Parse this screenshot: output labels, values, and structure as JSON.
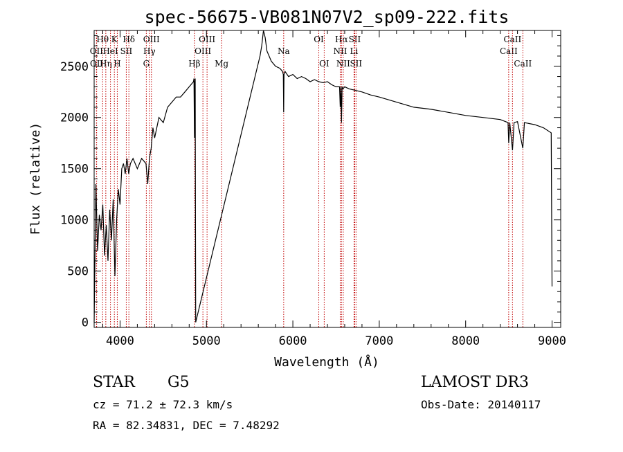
{
  "chart_data": {
    "type": "line",
    "title": "spec-56675-VB081N07V2_sp09-222.fits",
    "xlabel": "Wavelength (Å)",
    "ylabel": "Flux (relative)",
    "xlim": [
      3700,
      9100
    ],
    "ylim": [
      -50,
      2850
    ],
    "x_ticks": [
      4000,
      5000,
      6000,
      7000,
      8000,
      9000
    ],
    "y_ticks": [
      0,
      500,
      1000,
      1500,
      2000,
      2500
    ],
    "spectral_lines": [
      {
        "name": "Hθ",
        "wavelength": 3798,
        "row": 0
      },
      {
        "name": "OII",
        "wavelength": 3727,
        "row": 1
      },
      {
        "name": "OII",
        "wavelength": 3729,
        "row": 2
      },
      {
        "name": "Hη",
        "wavelength": 3835,
        "row": 2
      },
      {
        "name": "HeI",
        "wavelength": 3889,
        "row": 1
      },
      {
        "name": "K",
        "wavelength": 3934,
        "row": 0
      },
      {
        "name": "H",
        "wavelength": 3968,
        "row": 2
      },
      {
        "name": "SII",
        "wavelength": 4072,
        "row": 1
      },
      {
        "name": "Hδ",
        "wavelength": 4102,
        "row": 0
      },
      {
        "name": "G",
        "wavelength": 4304,
        "row": 2
      },
      {
        "name": "Hγ",
        "wavelength": 4340,
        "row": 1
      },
      {
        "name": "OIII",
        "wavelength": 4363,
        "row": 0
      },
      {
        "name": "Hβ",
        "wavelength": 4861,
        "row": 2
      },
      {
        "name": "OIII",
        "wavelength": 4959,
        "row": 1
      },
      {
        "name": "OIII",
        "wavelength": 5007,
        "row": 0
      },
      {
        "name": "Mg",
        "wavelength": 5175,
        "row": 2
      },
      {
        "name": "Na",
        "wavelength": 5894,
        "row": 1
      },
      {
        "name": "OI",
        "wavelength": 6300,
        "row": 0
      },
      {
        "name": "OI",
        "wavelength": 6363,
        "row": 2
      },
      {
        "name": "NII",
        "wavelength": 6548,
        "row": 1
      },
      {
        "name": "Hα",
        "wavelength": 6563,
        "row": 0
      },
      {
        "name": "NII",
        "wavelength": 6583,
        "row": 2
      },
      {
        "name": "SII",
        "wavelength": 6716,
        "row": 0
      },
      {
        "name": "Li",
        "wavelength": 6708,
        "row": 1
      },
      {
        "name": "SII",
        "wavelength": 6731,
        "row": 2
      },
      {
        "name": "CaII",
        "wavelength": 8498,
        "row": 1
      },
      {
        "name": "CaII",
        "wavelength": 8542,
        "row": 0
      },
      {
        "name": "CaII",
        "wavelength": 8662,
        "row": 2
      }
    ],
    "series": [
      {
        "name": "flux",
        "x": [
          3700,
          3720,
          3740,
          3760,
          3780,
          3800,
          3820,
          3840,
          3860,
          3880,
          3900,
          3920,
          3940,
          3960,
          3980,
          4000,
          4020,
          4040,
          4060,
          4080,
          4100,
          4120,
          4150,
          4200,
          4250,
          4300,
          4320,
          4340,
          4360,
          4380,
          4400,
          4450,
          4500,
          4550,
          4600,
          4650,
          4700,
          4750,
          4800,
          4850,
          4855,
          4861,
          4866,
          4870,
          4875,
          5620,
          5640,
          5660,
          5680,
          5700,
          5750,
          5800,
          5850,
          5880,
          5890,
          5894,
          5898,
          5910,
          5950,
          6000,
          6050,
          6100,
          6150,
          6200,
          6250,
          6300,
          6350,
          6400,
          6450,
          6500,
          6540,
          6548,
          6556,
          6563,
          6570,
          6580,
          6600,
          6650,
          6700,
          6800,
          6900,
          7000,
          7200,
          7400,
          7600,
          7800,
          8000,
          8200,
          8400,
          8490,
          8498,
          8510,
          8542,
          8560,
          8600,
          8662,
          8680,
          8800,
          8900,
          8990,
          9000
        ],
        "y": [
          0,
          1350,
          700,
          1050,
          900,
          1150,
          650,
          950,
          600,
          1100,
          800,
          1200,
          450,
          1000,
          1300,
          1150,
          1500,
          1550,
          1450,
          1600,
          1450,
          1550,
          1600,
          1500,
          1600,
          1550,
          1350,
          1600,
          1700,
          1900,
          1800,
          2000,
          1950,
          2100,
          2150,
          2200,
          2200,
          2250,
          2300,
          2350,
          2380,
          1800,
          2350,
          2380,
          0,
          2600,
          2700,
          2850,
          2780,
          2650,
          2550,
          2500,
          2480,
          2450,
          2420,
          2050,
          2420,
          2450,
          2400,
          2420,
          2380,
          2400,
          2380,
          2350,
          2370,
          2350,
          2340,
          2350,
          2320,
          2300,
          2300,
          2100,
          2300,
          1950,
          2300,
          2280,
          2300,
          2280,
          2270,
          2250,
          2220,
          2200,
          2150,
          2100,
          2080,
          2050,
          2020,
          2000,
          1980,
          1950,
          1750,
          1950,
          1680,
          1950,
          1960,
          1700,
          1950,
          1930,
          1900,
          1850,
          350
        ]
      }
    ]
  },
  "footer": {
    "object_type": "STAR",
    "subclass": "G5",
    "survey": "LAMOST DR3",
    "cz": "cz = 71.2 ± 72.3 km/s",
    "obs_date": "Obs-Date: 20140117",
    "coords": "RA =  82.34831, DEC =   7.48292"
  }
}
